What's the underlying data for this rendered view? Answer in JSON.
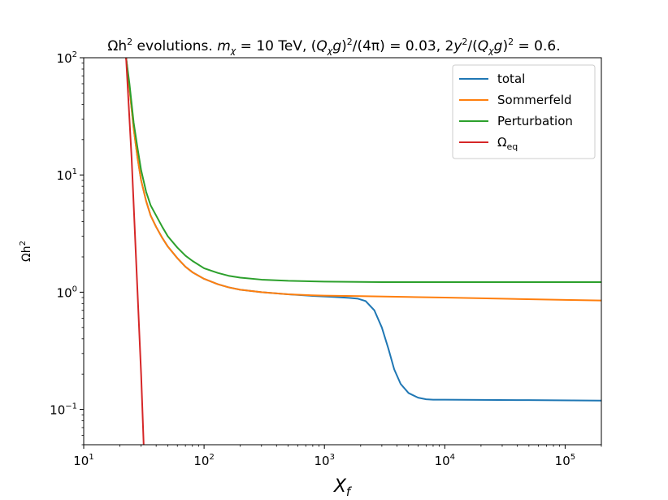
{
  "chart_data": {
    "type": "line",
    "title": {
      "prefix": "Ωh",
      "prefix_sup": "2",
      "text1": " evolutions. ",
      "m": "m",
      "m_sub": "χ",
      "text2": " = 10 TeV, (",
      "Q1": "Q",
      "Q1_sub": "χ",
      "g1": "g",
      "text3": ")",
      "sup2a": "2",
      "text4": "/(4π) = 0.03, 2",
      "y": "y",
      "sup2b": "2",
      "text5": "/(",
      "Q2": "Q",
      "Q2_sub": "χ",
      "g2": "g",
      "text6": ")",
      "sup2c": "2",
      "text7": " = 0.6."
    },
    "xlabel": {
      "main": "X",
      "sub": "f"
    },
    "ylabel": {
      "main": "Ωh",
      "sup": "2"
    },
    "xscale": "log",
    "yscale": "log",
    "xlim": [
      10,
      200000
    ],
    "ylim": [
      0.05,
      100
    ],
    "x_ticks": [
      {
        "value": 10,
        "base": "10",
        "exp": "1"
      },
      {
        "value": 100,
        "base": "10",
        "exp": "2"
      },
      {
        "value": 1000,
        "base": "10",
        "exp": "3"
      },
      {
        "value": 10000,
        "base": "10",
        "exp": "4"
      },
      {
        "value": 100000,
        "base": "10",
        "exp": "5"
      }
    ],
    "y_ticks": [
      {
        "value": 0.1,
        "base": "10",
        "exp": "−1"
      },
      {
        "value": 1,
        "base": "10",
        "exp": "0"
      },
      {
        "value": 10,
        "base": "10",
        "exp": "1"
      },
      {
        "value": 100,
        "base": "10",
        "exp": "2"
      }
    ],
    "grid": false,
    "legend_position": "top-right",
    "series": [
      {
        "name": "total",
        "color": "#1f77b4",
        "points": [
          [
            22.5,
            100
          ],
          [
            24,
            55
          ],
          [
            26,
            25
          ],
          [
            28,
            14
          ],
          [
            30,
            9
          ],
          [
            33,
            6
          ],
          [
            36,
            4.5
          ],
          [
            40,
            3.6
          ],
          [
            45,
            2.9
          ],
          [
            50,
            2.45
          ],
          [
            60,
            1.95
          ],
          [
            70,
            1.65
          ],
          [
            80,
            1.48
          ],
          [
            100,
            1.3
          ],
          [
            130,
            1.17
          ],
          [
            160,
            1.1
          ],
          [
            200,
            1.05
          ],
          [
            300,
            1.0
          ],
          [
            500,
            0.96
          ],
          [
            800,
            0.93
          ],
          [
            1200,
            0.91
          ],
          [
            1600,
            0.895
          ],
          [
            1900,
            0.88
          ],
          [
            2200,
            0.84
          ],
          [
            2600,
            0.7
          ],
          [
            3000,
            0.5
          ],
          [
            3400,
            0.33
          ],
          [
            3800,
            0.22
          ],
          [
            4300,
            0.165
          ],
          [
            5000,
            0.138
          ],
          [
            6000,
            0.126
          ],
          [
            7000,
            0.122
          ],
          [
            8000,
            0.121
          ],
          [
            10000,
            0.121
          ],
          [
            50000,
            0.12
          ],
          [
            200000,
            0.119
          ]
        ]
      },
      {
        "name": "Sommerfeld",
        "color": "#ff7f0e",
        "points": [
          [
            22.5,
            100
          ],
          [
            24,
            55
          ],
          [
            26,
            25
          ],
          [
            28,
            14
          ],
          [
            30,
            9
          ],
          [
            33,
            6
          ],
          [
            36,
            4.5
          ],
          [
            40,
            3.6
          ],
          [
            45,
            2.9
          ],
          [
            50,
            2.45
          ],
          [
            60,
            1.95
          ],
          [
            70,
            1.65
          ],
          [
            80,
            1.48
          ],
          [
            100,
            1.3
          ],
          [
            130,
            1.17
          ],
          [
            160,
            1.1
          ],
          [
            200,
            1.05
          ],
          [
            300,
            1.0
          ],
          [
            500,
            0.96
          ],
          [
            800,
            0.94
          ],
          [
            1000,
            0.935
          ],
          [
            2000,
            0.925
          ],
          [
            5000,
            0.91
          ],
          [
            10000,
            0.9
          ],
          [
            30000,
            0.88
          ],
          [
            100000,
            0.86
          ],
          [
            200000,
            0.85
          ]
        ]
      },
      {
        "name": "Perturbation",
        "color": "#2ca02c",
        "points": [
          [
            22.5,
            100
          ],
          [
            24,
            60
          ],
          [
            26,
            28
          ],
          [
            28,
            17
          ],
          [
            30,
            11
          ],
          [
            33,
            7.2
          ],
          [
            36,
            5.5
          ],
          [
            40,
            4.5
          ],
          [
            45,
            3.6
          ],
          [
            50,
            3.0
          ],
          [
            60,
            2.4
          ],
          [
            70,
            2.05
          ],
          [
            80,
            1.85
          ],
          [
            100,
            1.6
          ],
          [
            130,
            1.46
          ],
          [
            160,
            1.38
          ],
          [
            200,
            1.33
          ],
          [
            300,
            1.28
          ],
          [
            500,
            1.25
          ],
          [
            1000,
            1.23
          ],
          [
            3000,
            1.22
          ],
          [
            10000,
            1.22
          ],
          [
            100000,
            1.22
          ],
          [
            200000,
            1.22
          ]
        ]
      },
      {
        "name": "Ω",
        "name_sub": "eq",
        "color": "#d62728",
        "points": [
          [
            22.5,
            100
          ],
          [
            25,
            14
          ],
          [
            28,
            1.0
          ],
          [
            30,
            0.2
          ],
          [
            31.5,
            0.05
          ]
        ]
      }
    ]
  }
}
